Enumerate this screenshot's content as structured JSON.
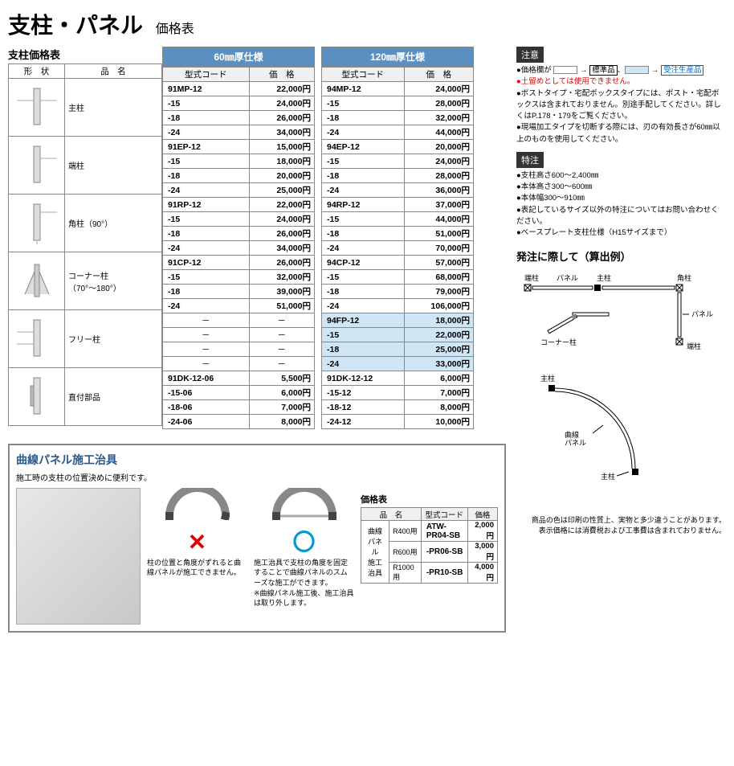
{
  "page": {
    "title": "支柱・パネル",
    "subtitle": "価格表"
  },
  "mainTable": {
    "leftHeader": "支柱価格表",
    "shapeHead": "形　状",
    "nameHead": "品　名",
    "spec60": "60㎜厚仕様",
    "spec120": "120㎜厚仕様",
    "codeHead": "型式コード",
    "priceHead": "価　格",
    "groups": [
      {
        "name": "主柱",
        "rows": [
          {
            "c60": "91MP-12",
            "p60": "22,000円",
            "c120": "94MP-12",
            "p120": "24,000円"
          },
          {
            "c60": "-15",
            "p60": "24,000円",
            "c120": "-15",
            "p120": "28,000円"
          },
          {
            "c60": "-18",
            "p60": "26,000円",
            "c120": "-18",
            "p120": "32,000円"
          },
          {
            "c60": "-24",
            "p60": "34,000円",
            "c120": "-24",
            "p120": "44,000円"
          }
        ]
      },
      {
        "name": "端柱",
        "rows": [
          {
            "c60": "91EP-12",
            "p60": "15,000円",
            "c120": "94EP-12",
            "p120": "20,000円"
          },
          {
            "c60": "-15",
            "p60": "18,000円",
            "c120": "-15",
            "p120": "24,000円"
          },
          {
            "c60": "-18",
            "p60": "20,000円",
            "c120": "-18",
            "p120": "28,000円"
          },
          {
            "c60": "-24",
            "p60": "25,000円",
            "c120": "-24",
            "p120": "36,000円"
          }
        ]
      },
      {
        "name": "角柱（90°）",
        "rows": [
          {
            "c60": "91RP-12",
            "p60": "22,000円",
            "c120": "94RP-12",
            "p120": "37,000円"
          },
          {
            "c60": "-15",
            "p60": "24,000円",
            "c120": "-15",
            "p120": "44,000円"
          },
          {
            "c60": "-18",
            "p60": "26,000円",
            "c120": "-18",
            "p120": "51,000円"
          },
          {
            "c60": "-24",
            "p60": "34,000円",
            "c120": "-24",
            "p120": "70,000円"
          }
        ]
      },
      {
        "name": "コーナー柱\n（70°～180°）",
        "rows": [
          {
            "c60": "91CP-12",
            "p60": "26,000円",
            "c120": "94CP-12",
            "p120": "57,000円"
          },
          {
            "c60": "-15",
            "p60": "32,000円",
            "c120": "-15",
            "p120": "68,000円"
          },
          {
            "c60": "-18",
            "p60": "39,000円",
            "c120": "-18",
            "p120": "79,000円"
          },
          {
            "c60": "-24",
            "p60": "51,000円",
            "c120": "-24",
            "p120": "106,000円"
          }
        ]
      },
      {
        "name": "フリー柱",
        "rows": [
          {
            "c60": "－",
            "p60": "－",
            "c120": "94FP-12",
            "p120": "18,000円",
            "hl": true
          },
          {
            "c60": "－",
            "p60": "－",
            "c120": "-15",
            "p120": "22,000円",
            "hl": true
          },
          {
            "c60": "－",
            "p60": "－",
            "c120": "-18",
            "p120": "25,000円",
            "hl": true
          },
          {
            "c60": "－",
            "p60": "－",
            "c120": "-24",
            "p120": "33,000円",
            "hl": true
          }
        ]
      },
      {
        "name": "直付部品",
        "rows": [
          {
            "c60": "91DK-12-06",
            "p60": "5,500円",
            "c120": "91DK-12-12",
            "p120": "6,000円"
          },
          {
            "c60": "-15-06",
            "p60": "6,000円",
            "c120": "-15-12",
            "p120": "7,000円"
          },
          {
            "c60": "-18-06",
            "p60": "7,000円",
            "c120": "-18-12",
            "p120": "8,000円"
          },
          {
            "c60": "-24-06",
            "p60": "8,000円",
            "c120": "-24-12",
            "p120": "10,000円"
          }
        ]
      }
    ]
  },
  "notice": {
    "header": "注意",
    "lines": [
      "●価格欄が",
      "●土留めとしては使用できません。",
      "●ポストタイプ・宅配ボックスタイプには、ポスト・宅配ボックスは含まれておりません。別途手配してください。詳しくはP.178・179をご覧ください。",
      "●現場加工タイプを切断する際には、刃の有効長さが60㎜以上のものを使用してください。"
    ],
    "legend": {
      "std": "標準品",
      "mto": "受注生産品"
    }
  },
  "special": {
    "header": "特注",
    "lines": [
      "●支柱高さ600～2,400㎜",
      "●本体高さ300～600㎜",
      "●本体幅300～910㎜",
      "●表記しているサイズ以外の特注についてはお問い合わせください。",
      "●ベースプレート支柱仕様（H15サイズまで）"
    ]
  },
  "diagram": {
    "title": "発注に際して（算出例）",
    "labels": {
      "tanchu": "端柱",
      "panel": "パネル",
      "shuchu": "主柱",
      "kakuchu": "角柱",
      "corner": "コーナー柱",
      "tanchu2": "端柱",
      "panel2": "パネル",
      "shuchu2": "主柱",
      "curve": "曲線\nパネル",
      "shuchu3": "主柱"
    }
  },
  "jig": {
    "title": "曲線パネル施工治具",
    "subtitle": "施工時の支柱の位置決めに便利です。",
    "bad": "柱の位置と角度がずれると曲線パネルが施工できません。",
    "good": "施工治具で支柱の角度を固定することで曲線パネルのスムーズな施工ができます。\n※曲線パネル施工後、施工治具は取り外します。",
    "priceHead": "価格表",
    "cols": {
      "name": "品　名",
      "use": "",
      "code": "型式コード",
      "price": "価格"
    },
    "groupName": "曲線パネル\n施工治具",
    "rows": [
      {
        "use": "R400用",
        "code": "ATW-PR04-SB",
        "price": "2,000円"
      },
      {
        "use": "R600用",
        "code": "-PR06-SB",
        "price": "3,000円"
      },
      {
        "use": "R1000用",
        "code": "-PR10-SB",
        "price": "4,000円"
      }
    ]
  },
  "footnote": {
    "l1": "商品の色は印刷の性質上、実物と多少違うことがあります。",
    "l2": "表示価格には消費税および工事費は含まれておりません。"
  }
}
